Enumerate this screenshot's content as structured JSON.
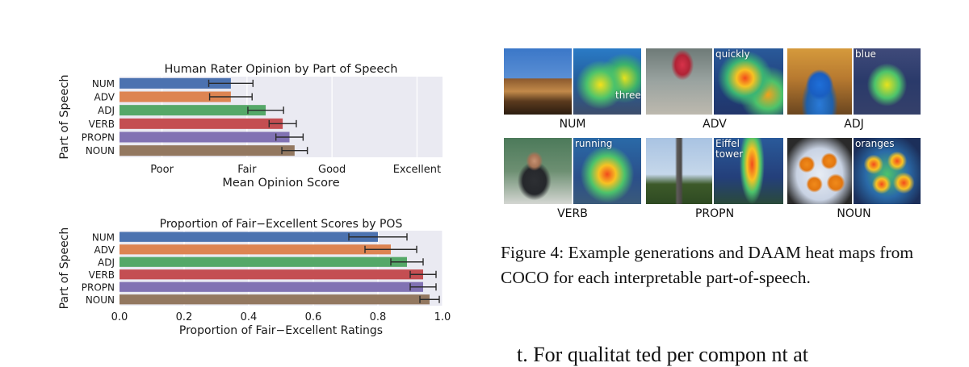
{
  "chart_data": [
    {
      "type": "bar",
      "orientation": "horizontal",
      "title": "Human Rater Opinion by Part of Speech",
      "xlabel": "Mean Opinion Score",
      "ylabel": "Part of Speech",
      "categories": [
        "NUM",
        "ADV",
        "ADJ",
        "VERB",
        "PROPN",
        "NOUN"
      ],
      "values": [
        1.81,
        1.81,
        2.22,
        2.42,
        2.5,
        2.56
      ],
      "errors": [
        0.26,
        0.25,
        0.21,
        0.16,
        0.16,
        0.15
      ],
      "colors": [
        "#4c72b0",
        "#dd8452",
        "#55a868",
        "#c44e52",
        "#8172b3",
        "#937860"
      ],
      "xticks": [
        {
          "value": 1,
          "label": "Poor"
        },
        {
          "value": 2,
          "label": "Fair"
        },
        {
          "value": 3,
          "label": "Good"
        },
        {
          "value": 4,
          "label": "Excellent"
        }
      ],
      "xlim": [
        0.5,
        4.3
      ],
      "grid": true
    },
    {
      "type": "bar",
      "orientation": "horizontal",
      "title": "Proportion of Fair−Excellent Scores by POS",
      "xlabel": "Proportion of Fair−Excellent Ratings",
      "ylabel": "Part of Speech",
      "categories": [
        "NUM",
        "ADV",
        "ADJ",
        "VERB",
        "PROPN",
        "NOUN"
      ],
      "values": [
        0.8,
        0.84,
        0.89,
        0.94,
        0.94,
        0.96
      ],
      "errors": [
        0.09,
        0.08,
        0.05,
        0.04,
        0.04,
        0.03
      ],
      "colors": [
        "#4c72b0",
        "#dd8452",
        "#55a868",
        "#c44e52",
        "#8172b3",
        "#937860"
      ],
      "xticks": [
        {
          "value": 0.0,
          "label": "0.0"
        },
        {
          "value": 0.2,
          "label": "0.2"
        },
        {
          "value": 0.4,
          "label": "0.4"
        },
        {
          "value": 0.6,
          "label": "0.6"
        },
        {
          "value": 0.8,
          "label": "0.8"
        },
        {
          "value": 1.0,
          "label": "1.0"
        }
      ],
      "xlim": [
        0.0,
        1.0
      ],
      "grid": true
    }
  ],
  "figure": {
    "panels": [
      {
        "label": "NUM",
        "word": "three"
      },
      {
        "label": "ADV",
        "word": "quickly"
      },
      {
        "label": "ADJ",
        "word": "blue"
      },
      {
        "label": "VERB",
        "word": "running"
      },
      {
        "label": "PROPN",
        "word": "Eiffel tower"
      },
      {
        "label": "NOUN",
        "word": "oranges"
      }
    ],
    "caption": "Figure 4: Example generations and DAAM heat maps from COCO for each interpretable part-of-speech."
  },
  "body_text_fragment": "t. For qualitat  ted per compon  nt at"
}
